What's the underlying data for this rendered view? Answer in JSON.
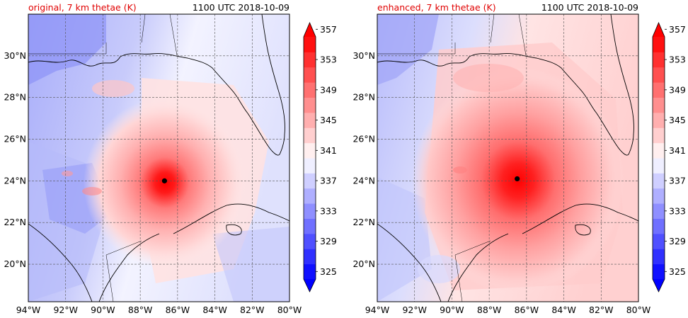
{
  "panels": [
    {
      "title_left": "original, 7 km thetae (K)",
      "title_right": "1100 UTC 2018-10-09",
      "storm_center": {
        "lon": -86.7,
        "lat": 24.0
      },
      "colorbar": {
        "min": 325,
        "max": 357,
        "ticks": [
          "325",
          "329",
          "333",
          "337",
          "341",
          "345",
          "349",
          "353",
          "357"
        ]
      }
    },
    {
      "title_left": "enhanced, 7 km thetae (K)",
      "title_right": "1100 UTC 2018-10-09",
      "storm_center": {
        "lon": -86.5,
        "lat": 24.1
      },
      "colorbar": {
        "min": 325,
        "max": 357,
        "ticks": [
          "325",
          "329",
          "333",
          "337",
          "341",
          "345",
          "349",
          "353",
          "357"
        ]
      }
    }
  ],
  "map": {
    "lon_range": [
      -94,
      -80
    ],
    "lat_range": [
      18.2,
      32
    ],
    "lon_labels": [
      "94°W",
      "92°W",
      "90°W",
      "88°W",
      "86°W",
      "84°W",
      "82°W",
      "80°W"
    ],
    "lat_labels": [
      "20°N",
      "22°N",
      "24°N",
      "26°N",
      "28°N",
      "30°N"
    ]
  },
  "colors": {
    "accent_title": "#e00000",
    "cold": "#0000ff",
    "warm": "#ff0000",
    "neutral": "#ffffff",
    "storm_center": "#000000"
  }
}
